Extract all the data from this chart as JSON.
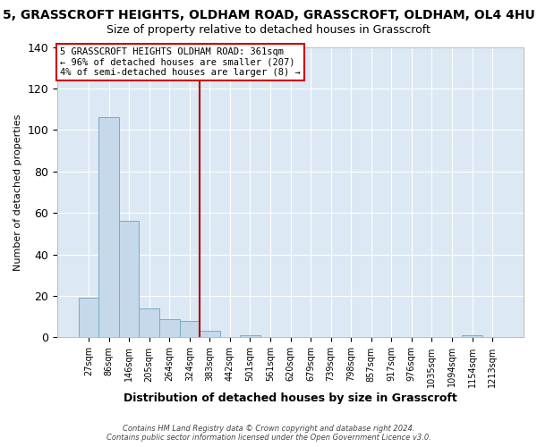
{
  "title": "5, GRASSCROFT HEIGHTS, OLDHAM ROAD, GRASSCROFT, OLDHAM, OL4 4HU",
  "subtitle": "Size of property relative to detached houses in Grasscroft",
  "xlabel": "Distribution of detached houses by size in Grasscroft",
  "ylabel": "Number of detached properties",
  "bin_labels": [
    "27sqm",
    "86sqm",
    "146sqm",
    "205sqm",
    "264sqm",
    "324sqm",
    "383sqm",
    "442sqm",
    "501sqm",
    "561sqm",
    "620sqm",
    "679sqm",
    "739sqm",
    "798sqm",
    "857sqm",
    "917sqm",
    "976sqm",
    "1035sqm",
    "1094sqm",
    "1154sqm",
    "1213sqm"
  ],
  "bar_values": [
    19,
    106,
    56,
    14,
    9,
    8,
    3,
    0,
    1,
    0,
    0,
    0,
    0,
    0,
    0,
    0,
    0,
    0,
    0,
    1,
    0
  ],
  "bar_color": "#c5d9ea",
  "bar_edge_color": "#7aaac8",
  "vline_color": "#aa0000",
  "vline_x": 5.5,
  "annotation_line1": "5 GRASSCROFT HEIGHTS OLDHAM ROAD: 361sqm",
  "annotation_line2": "← 96% of detached houses are smaller (207)",
  "annotation_line3": "4% of semi-detached houses are larger (8) →",
  "annotation_box_facecolor": "white",
  "annotation_box_edgecolor": "#cc0000",
  "ylim": [
    0,
    140
  ],
  "yticks": [
    0,
    20,
    40,
    60,
    80,
    100,
    120,
    140
  ],
  "figure_background": "#ffffff",
  "plot_background": "#dce8f4",
  "grid_color": "#ffffff",
  "footer_line1": "Contains HM Land Registry data © Crown copyright and database right 2024.",
  "footer_line2": "Contains public sector information licensed under the Open Government Licence v3.0.",
  "title_fontsize": 10,
  "subtitle_fontsize": 9,
  "ylabel_fontsize": 8,
  "xlabel_fontsize": 9,
  "tick_fontsize": 7,
  "annotation_fontsize": 7.5,
  "footer_fontsize": 6
}
